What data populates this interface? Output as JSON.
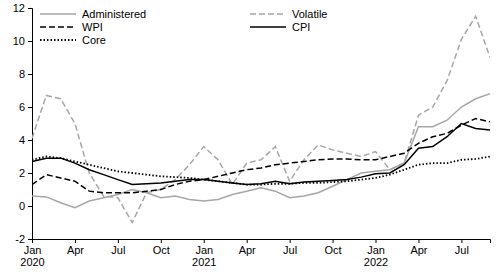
{
  "chart_data": {
    "type": "line",
    "categories": [
      "Jan 2020",
      null,
      null,
      "Apr",
      null,
      null,
      "Jul",
      null,
      null,
      "Oct",
      null,
      null,
      "Jan 2021",
      null,
      null,
      "Apr",
      null,
      null,
      "Jul",
      null,
      null,
      "Oct",
      null,
      null,
      "Jan 2022",
      null,
      null,
      "Apr",
      null,
      null,
      "Jul",
      null,
      null
    ],
    "series": [
      {
        "name": "Administered",
        "color": "#a6a6a6",
        "line_style": "solid",
        "values": [
          0.6,
          0.55,
          0.2,
          -0.1,
          0.3,
          0.5,
          0.7,
          1.0,
          0.8,
          0.5,
          0.6,
          0.4,
          0.3,
          0.4,
          0.7,
          0.9,
          1.1,
          0.9,
          0.5,
          0.6,
          0.8,
          1.2,
          1.6,
          2.0,
          2.1,
          2.2,
          2.6,
          4.8,
          4.8,
          5.2,
          6.0,
          6.5,
          6.8
        ]
      },
      {
        "name": "Volatile",
        "color": "#a6a6a6",
        "line_style": "dashed",
        "values": [
          4.1,
          6.7,
          6.5,
          5.0,
          2.0,
          0.6,
          0.5,
          -1.0,
          0.8,
          1.0,
          1.6,
          2.5,
          3.6,
          2.8,
          1.3,
          2.6,
          2.8,
          3.6,
          1.5,
          2.8,
          3.7,
          3.4,
          3.2,
          3.0,
          3.3,
          2.2,
          2.6,
          5.5,
          6.0,
          7.6,
          10.1,
          11.5,
          9.0
        ]
      },
      {
        "name": "WPI",
        "color": "#000000",
        "line_style": "dashed",
        "values": [
          1.3,
          1.9,
          1.7,
          1.5,
          0.9,
          0.8,
          0.8,
          0.8,
          0.9,
          1.0,
          1.3,
          1.5,
          1.6,
          1.8,
          2.0,
          2.2,
          2.3,
          2.5,
          2.6,
          2.7,
          2.8,
          2.85,
          2.85,
          2.8,
          2.8,
          3.0,
          3.2,
          3.8,
          4.2,
          4.4,
          4.9,
          5.3,
          5.1
        ]
      },
      {
        "name": "CPI",
        "color": "#000000",
        "line_style": "solid",
        "values": [
          2.7,
          2.9,
          2.9,
          2.6,
          2.2,
          1.9,
          1.6,
          1.3,
          1.35,
          1.4,
          1.5,
          1.6,
          1.6,
          1.5,
          1.4,
          1.3,
          1.35,
          1.5,
          1.35,
          1.45,
          1.5,
          1.55,
          1.6,
          1.75,
          1.95,
          2.0,
          2.5,
          3.5,
          3.6,
          4.2,
          5.0,
          4.7,
          4.6
        ]
      },
      {
        "name": "Core",
        "color": "#000000",
        "line_style": "dotted",
        "values": [
          2.8,
          3.0,
          2.9,
          2.7,
          2.5,
          2.3,
          2.1,
          2.0,
          1.9,
          1.8,
          1.75,
          1.7,
          1.6,
          1.5,
          1.4,
          1.3,
          1.3,
          1.35,
          1.35,
          1.4,
          1.4,
          1.45,
          1.5,
          1.6,
          1.7,
          1.9,
          2.2,
          2.5,
          2.6,
          2.6,
          2.8,
          2.85,
          3.0
        ]
      }
    ],
    "ylim": [
      -2,
      12
    ],
    "yticks": [
      -2,
      0,
      2,
      4,
      6,
      8,
      10,
      12
    ],
    "legend": "upper left"
  }
}
